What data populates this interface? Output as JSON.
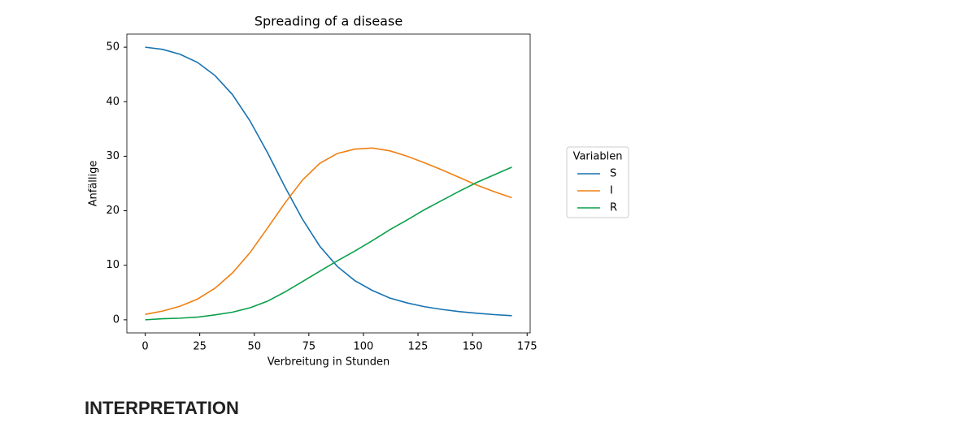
{
  "chart_data": {
    "type": "line",
    "title": "Spreading of a disease",
    "x_label": "Verbreitung in Stunden",
    "y_label": "Anfällige",
    "x": [
      0,
      8,
      16,
      24,
      32,
      40,
      48,
      56,
      64,
      72,
      80,
      88,
      96,
      104,
      112,
      120,
      128,
      136,
      144,
      152,
      160,
      168
    ],
    "series": [
      {
        "name": "S",
        "color": "#1772b0",
        "values": [
          50,
          49.6,
          48.7,
          47.2,
          44.8,
          41.3,
          36.5,
          30.7,
          24.4,
          18.5,
          13.5,
          9.8,
          7.2,
          5.4,
          4.0,
          3.1,
          2.4,
          1.9,
          1.5,
          1.2,
          0.95,
          0.75
        ]
      },
      {
        "name": "I",
        "color": "#f07f11",
        "values": [
          1,
          1.6,
          2.5,
          3.8,
          5.8,
          8.6,
          12.3,
          16.8,
          21.4,
          25.6,
          28.7,
          30.5,
          31.3,
          31.5,
          31.0,
          30.0,
          28.8,
          27.5,
          26.1,
          24.7,
          23.5,
          22.4
        ]
      },
      {
        "name": "R",
        "color": "#0aa04a",
        "values": [
          0,
          0.2,
          0.3,
          0.5,
          0.9,
          1.4,
          2.2,
          3.4,
          5.1,
          7.0,
          8.9,
          10.8,
          12.6,
          14.5,
          16.5,
          18.3,
          20.2,
          21.9,
          23.6,
          25.2,
          26.6,
          28.0
        ]
      }
    ],
    "legend_title": "Variablen",
    "legend": "right",
    "xlim": [
      -8.4,
      176.4
    ],
    "xticks": [
      0,
      25,
      50,
      75,
      100,
      125,
      150,
      175
    ],
    "ylim": [
      -2.4,
      52.4
    ],
    "yticks": [
      0,
      10,
      20,
      30,
      40,
      50
    ],
    "grid": false
  },
  "heading": "INTERPRETATION"
}
